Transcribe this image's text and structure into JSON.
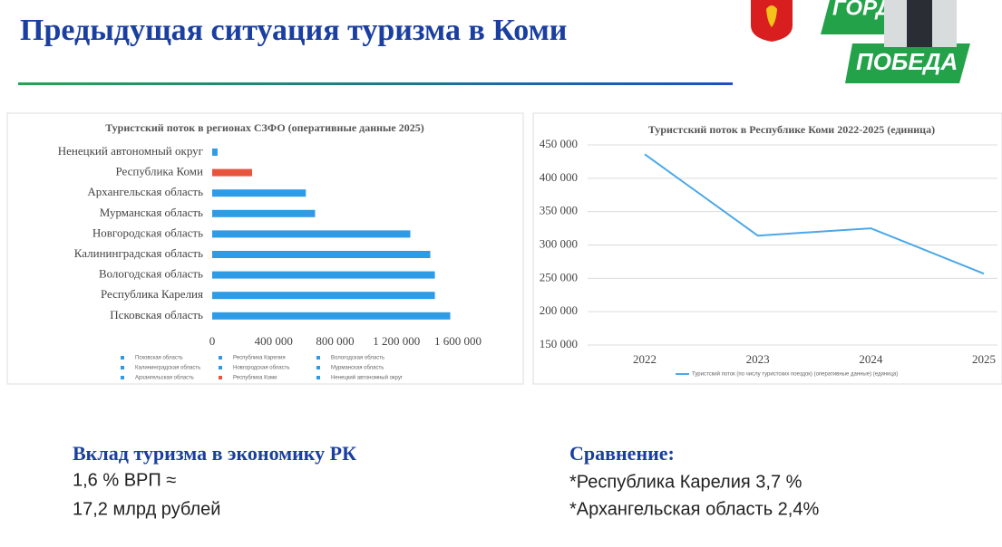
{
  "header": {
    "title": "Предыдущая ситуация туризма в Коми",
    "logo_top": "ГОРД",
    "logo_bottom": "ПОБЕДА"
  },
  "chart_data": [
    {
      "type": "bar",
      "horizontal": true,
      "title": "Туристский поток в регионах СЗФО (оперативные данные 2025)",
      "categories": [
        "Ненецкий автономный округ",
        "Республика Коми",
        "Архангельская область",
        "Мурманская область",
        "Новгородская область",
        "Калининградская область",
        "Вологодская область",
        "Республика Карелия",
        "Псковская область"
      ],
      "values": [
        35000,
        260000,
        610000,
        670000,
        1290000,
        1420000,
        1450000,
        1450000,
        1550000
      ],
      "colors": [
        "#2e9be6",
        "#e8553f",
        "#2e9be6",
        "#2e9be6",
        "#2e9be6",
        "#2e9be6",
        "#2e9be6",
        "#2e9be6",
        "#2e9be6"
      ],
      "xlim": [
        0,
        1600000
      ],
      "xticks": [
        0,
        {
          "value": 400000,
          "label": "400 000"
        },
        {
          "value": 800000,
          "label": "800 000"
        },
        {
          "value": 1200000,
          "label": "1 200 000"
        },
        {
          "value": 1600000,
          "label": "1 600 000"
        }
      ],
      "grid": false,
      "legend": "bottom"
    },
    {
      "type": "line",
      "title": "Туристский поток в Республике Коми 2022-2025 (единица)",
      "categories": [
        "2022",
        "2023",
        "2024",
        "2025"
      ],
      "series": [
        {
          "name": "Туристский поток (по числу туристских поездок) (оперативные данные) (единица)",
          "color": "#4aa8e8",
          "values": [
            436000,
            314000,
            325000,
            257000
          ]
        }
      ],
      "ylim": [
        150000,
        450000
      ],
      "yticks": [
        {
          "value": 150000,
          "label": "150 000"
        },
        {
          "value": 200000,
          "label": "200 000"
        },
        {
          "value": 250000,
          "label": "250 000"
        },
        {
          "value": 300000,
          "label": "300 000"
        },
        {
          "value": 350000,
          "label": "350 000"
        },
        {
          "value": 400000,
          "label": "400 000"
        },
        {
          "value": 450000,
          "label": "450 000"
        }
      ],
      "grid": true,
      "legend": "bottom"
    }
  ],
  "contribution": {
    "heading": "Вклад туризма в экономику РК",
    "line1": "1,6 % ВРП ≈",
    "line2": "17,2 млрд рублей"
  },
  "comparison": {
    "heading": "Сравнение:",
    "line1": "*Республика Карелия  3,7 %",
    "line2": "*Архангельская область  2,4%"
  }
}
